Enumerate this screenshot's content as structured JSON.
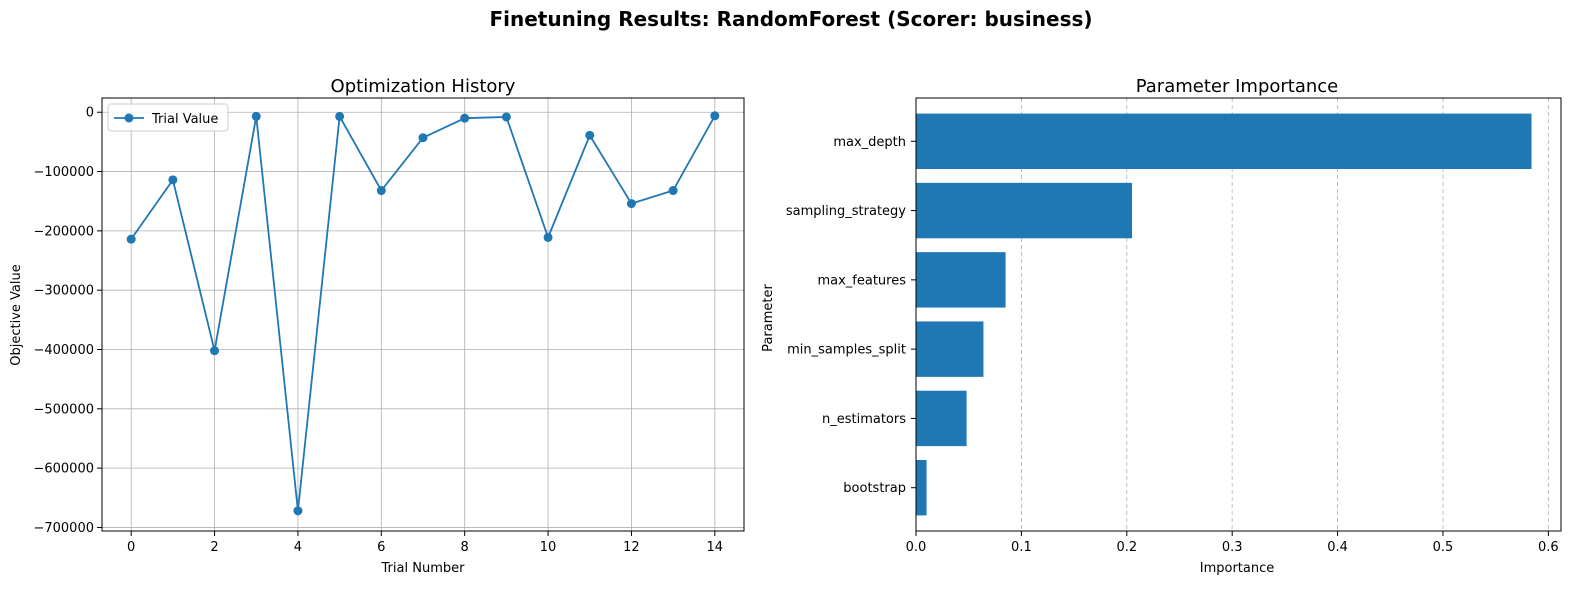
{
  "figure": {
    "title": "Finetuning Results: RandomForest (Scorer: business)"
  },
  "colors": {
    "series": "#1f77b4",
    "grid": "#b0b0b0",
    "axis": "#000000"
  },
  "chart_data": [
    {
      "type": "line",
      "title": "Optimization History",
      "xlabel": "Trial Number",
      "ylabel": "Objective Value",
      "xlim": [
        -0.7,
        14.7
      ],
      "ylim": [
        -706000,
        24000
      ],
      "x_ticks": [
        0,
        2,
        4,
        6,
        8,
        10,
        12,
        14
      ],
      "y_ticks": [
        0,
        -100000,
        -200000,
        -300000,
        -400000,
        -500000,
        -600000,
        -700000
      ],
      "y_tick_labels": [
        "0",
        "−100000",
        "−200000",
        "−300000",
        "−400000",
        "−500000",
        "−600000",
        "−700000"
      ],
      "grid": true,
      "legend_position": "top-left",
      "series": [
        {
          "name": "Trial Value",
          "marker": "circle",
          "x": [
            0,
            1,
            2,
            3,
            4,
            5,
            6,
            7,
            8,
            9,
            10,
            11,
            12,
            13,
            14
          ],
          "y": [
            -214000,
            -114000,
            -402000,
            -7000,
            -672000,
            -7000,
            -132000,
            -43000,
            -10000,
            -8000,
            -211000,
            -39000,
            -154000,
            -132000,
            -6000
          ]
        }
      ]
    },
    {
      "type": "bar",
      "orientation": "horizontal",
      "title": "Parameter Importance",
      "xlabel": "Importance",
      "ylabel": "Parameter",
      "xlim": [
        0,
        0.612
      ],
      "x_ticks": [
        0.0,
        0.1,
        0.2,
        0.3,
        0.4,
        0.5,
        0.6
      ],
      "x_tick_labels": [
        "0.0",
        "0.1",
        "0.2",
        "0.3",
        "0.4",
        "0.5",
        "0.6"
      ],
      "grid": "x-dashed",
      "categories": [
        "max_depth",
        "sampling_strategy",
        "max_features",
        "min_samples_split",
        "n_estimators",
        "bootstrap"
      ],
      "values": [
        0.584,
        0.205,
        0.085,
        0.064,
        0.048,
        0.01
      ]
    }
  ]
}
